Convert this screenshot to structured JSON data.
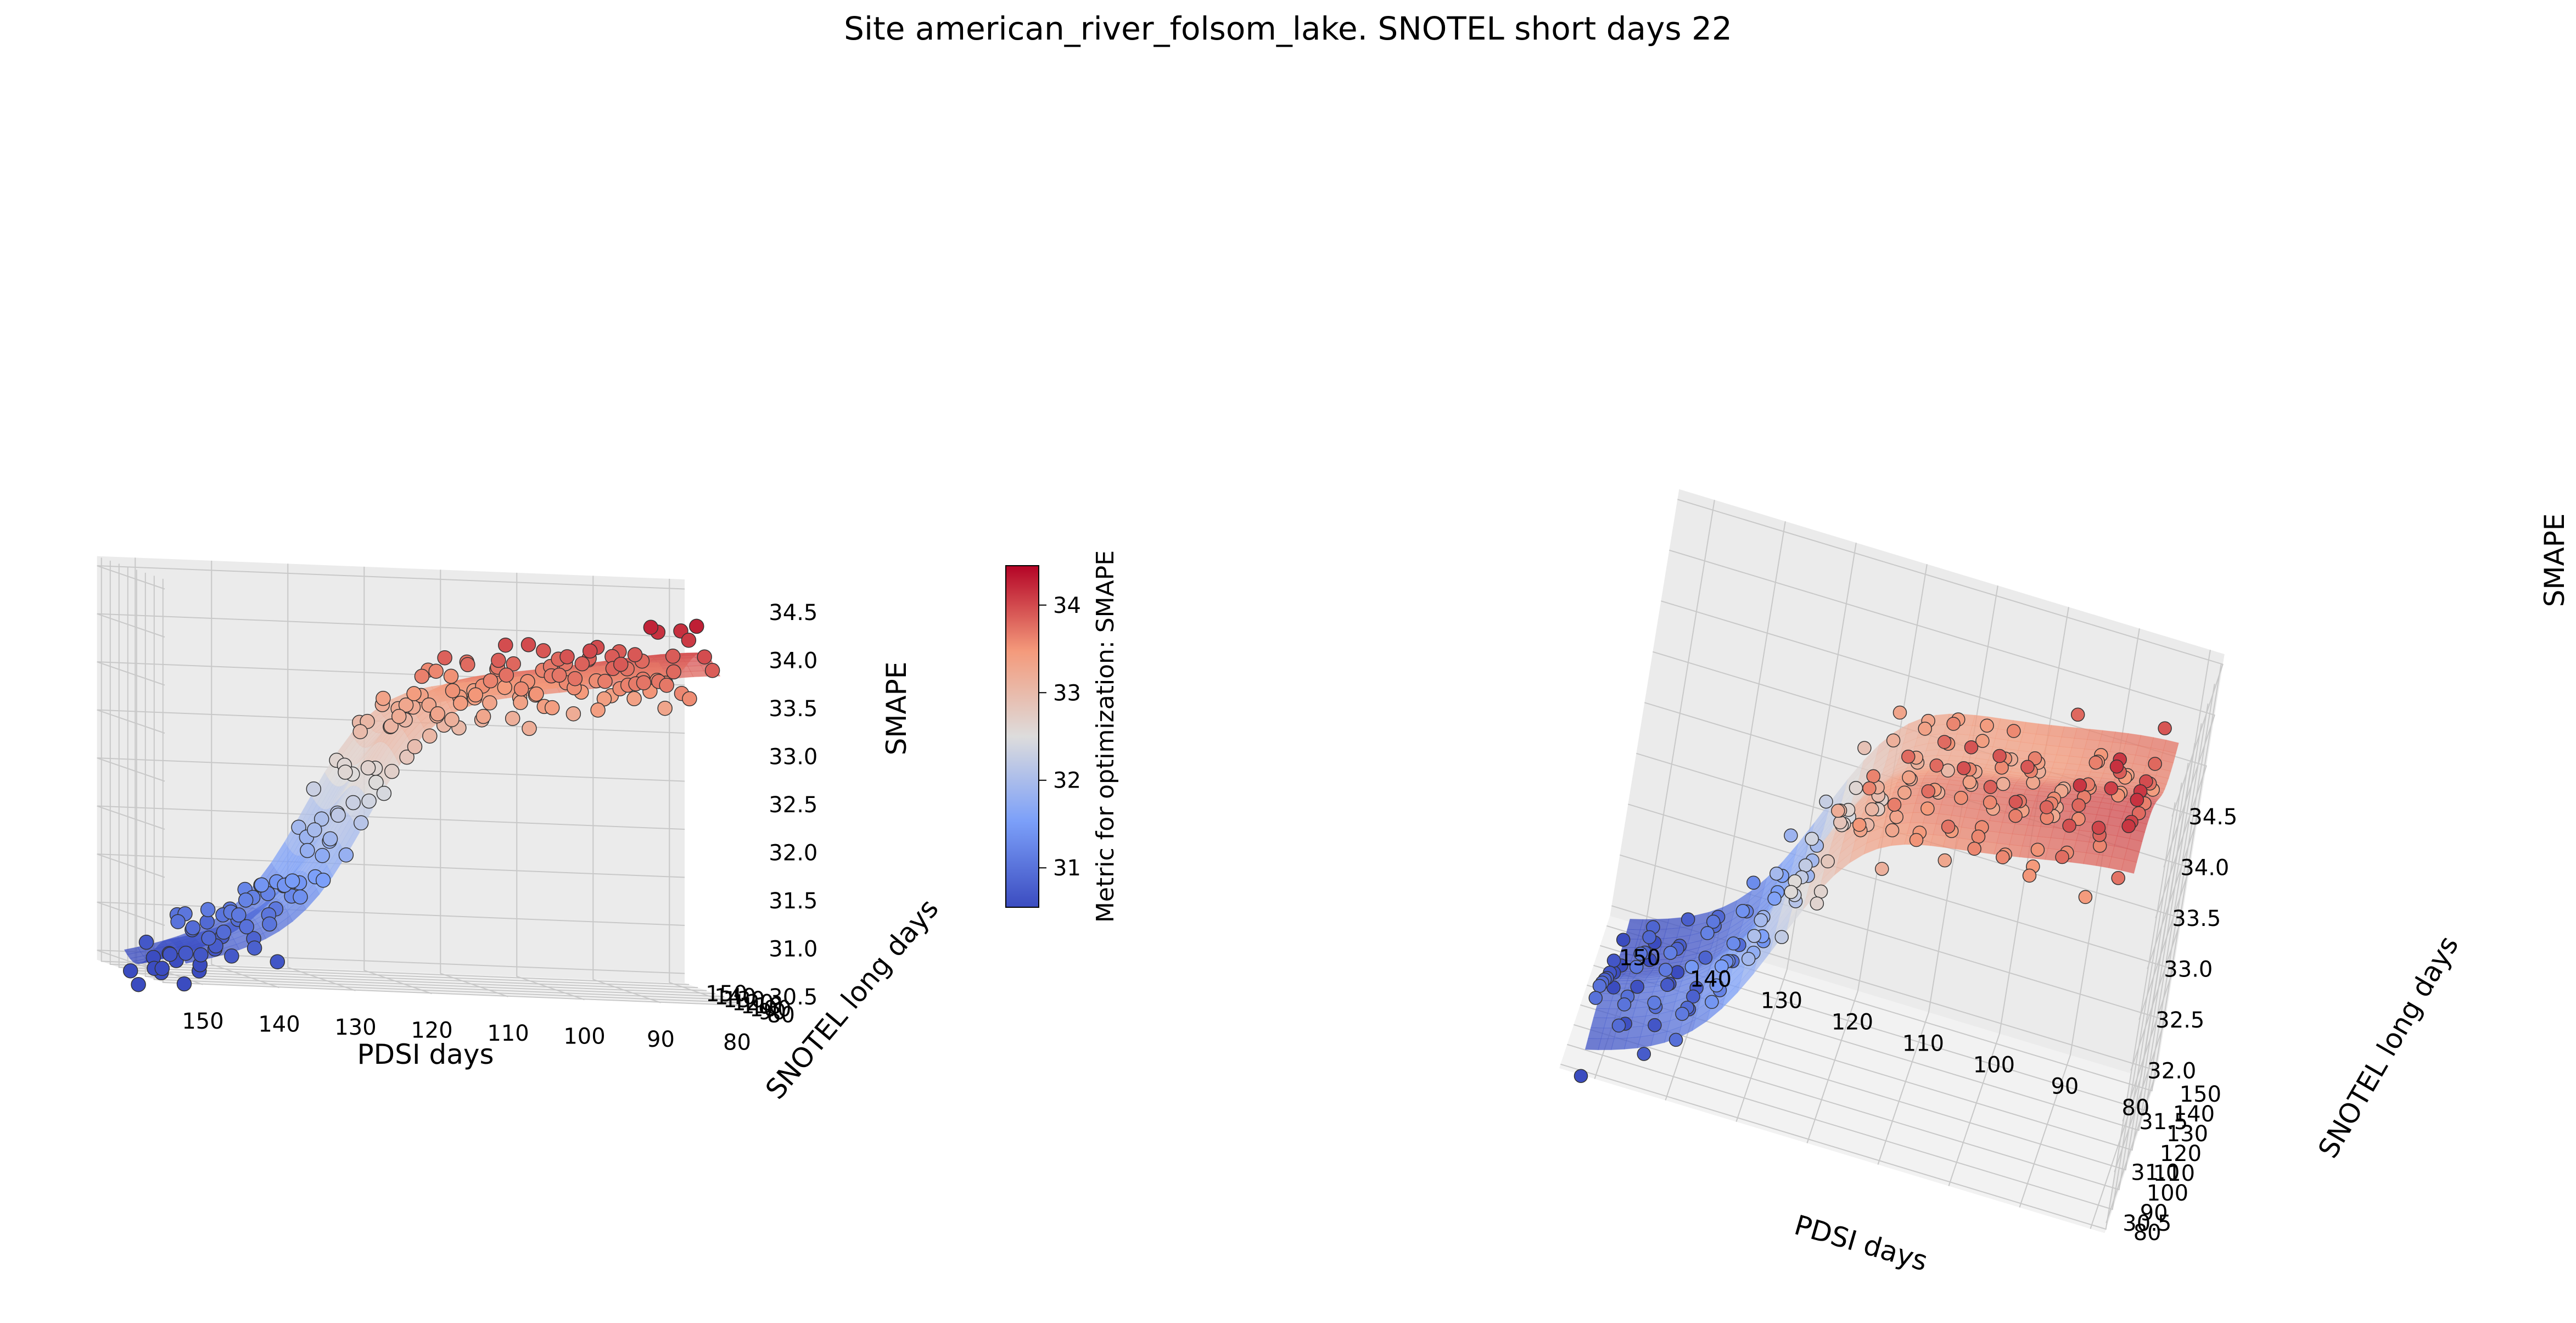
{
  "title": "Site american_river_folsom_lake. SNOTEL short days 22",
  "colors": {
    "low": "#3b4cc0",
    "mid": "#dddcdc",
    "high": "#b40426",
    "pane": "#f2f2f2",
    "pane_side": "#ebebeb",
    "grid": "#c8c8c8",
    "marker_edge": "#333333"
  },
  "colorbar": {
    "label": "Metric for optimization: SMAPE",
    "ticks": [
      "31",
      "32",
      "33",
      "34"
    ],
    "range": [
      30.55,
      34.45
    ]
  },
  "chart_data": [
    {
      "type": "scatter",
      "subtype": "3d-scatter-with-fitted-surface",
      "view": "low-elevation",
      "x": {
        "label": "PDSI days",
        "ticks": [
          "150",
          "140",
          "130",
          "120",
          "110",
          "100",
          "90",
          "80"
        ],
        "range": [
          155,
          78
        ]
      },
      "y": {
        "label": "SNOTEL long days",
        "ticks": [
          "80",
          "90",
          "100",
          "110",
          "120",
          "130",
          "140",
          "150"
        ],
        "range": [
          78,
          155
        ]
      },
      "z": {
        "label": "SMAPE",
        "ticks": [
          "30.5",
          "31.0",
          "31.5",
          "32.0",
          "32.5",
          "33.0",
          "33.5",
          "34.0",
          "34.5"
        ],
        "range": [
          30.4,
          34.6
        ]
      },
      "grid": true
    },
    {
      "type": "scatter",
      "subtype": "3d-scatter-with-fitted-surface",
      "view": "elevated",
      "x": {
        "label": "PDSI days",
        "ticks": [
          "150",
          "140",
          "130",
          "120",
          "110",
          "100",
          "90",
          "80"
        ],
        "range": [
          155,
          78
        ]
      },
      "y": {
        "label": "SNOTEL long days",
        "ticks": [
          "80",
          "90",
          "100",
          "110",
          "120",
          "130",
          "140",
          "150"
        ],
        "range": [
          78,
          155
        ]
      },
      "z": {
        "label": "SMAPE",
        "ticks": [
          "30.5",
          "31.0",
          "31.5",
          "32.0",
          "32.5",
          "33.0",
          "33.5",
          "34.0",
          "34.5"
        ],
        "range": [
          30.4,
          34.6
        ]
      },
      "grid": true
    }
  ]
}
